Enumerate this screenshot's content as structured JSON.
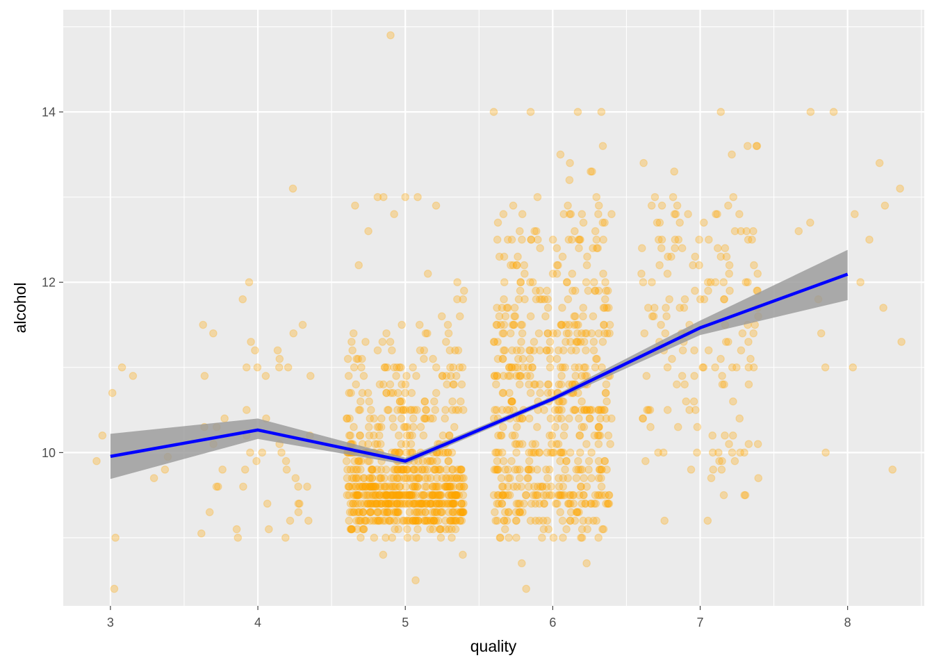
{
  "chart_data": {
    "type": "scatter",
    "title": "",
    "xlabel": "quality",
    "ylabel": "alcohol",
    "xlim": [
      2.68,
      8.52
    ],
    "ylim": [
      8.2,
      15.2
    ],
    "x_ticks": [
      3,
      4,
      5,
      6,
      7,
      8
    ],
    "x_tick_labels": [
      "3",
      "4",
      "5",
      "6",
      "7",
      "8"
    ],
    "y_ticks": [
      10,
      12,
      14
    ],
    "y_tick_labels": [
      "10",
      "12",
      "14"
    ],
    "grid": true,
    "legend": "none",
    "jitter": {
      "x_range": 0.4,
      "y_range": 0
    },
    "points": {
      "color": "#FFA500",
      "alpha": 0.3,
      "by_quality": {
        "3": {
          "n": 10,
          "alcohol": [
            8.4,
            9.0,
            9.7,
            9.9,
            9.95,
            10.2,
            10.7,
            10.9,
            11.0,
            9.8
          ]
        },
        "4": {
          "n": 53,
          "alcohol": [
            9.0,
            9.0,
            9.05,
            9.1,
            9.1,
            9.2,
            9.2,
            9.3,
            9.3,
            9.4,
            9.4,
            9.4,
            9.6,
            9.6,
            9.6,
            9.6,
            9.6,
            9.7,
            9.8,
            9.8,
            9.8,
            9.9,
            9.9,
            10.0,
            10.0,
            10.0,
            10.1,
            10.1,
            10.2,
            10.2,
            10.3,
            10.3,
            10.4,
            10.4,
            10.5,
            10.9,
            10.9,
            11.0,
            11.0,
            11.0,
            11.1,
            11.2,
            11.2,
            11.3,
            11.4,
            11.4,
            11.5,
            11.5,
            11.8,
            12.0,
            13.1,
            10.9,
            11.0
          ]
        },
        "5": {
          "n": 681
        },
        "6": {
          "n": 638
        },
        "7": {
          "n": 199
        },
        "8": {
          "n": 18,
          "alcohol": [
            9.8,
            10.0,
            11.0,
            11.0,
            11.3,
            11.4,
            11.7,
            11.8,
            12.0,
            12.6,
            12.7,
            12.8,
            12.9,
            13.1,
            13.4,
            14.0,
            14.0,
            12.5
          ]
        }
      },
      "outliers": [
        [
          4.9,
          14.9
        ],
        [
          5.6,
          14.0
        ],
        [
          5.85,
          14.0
        ],
        [
          6.17,
          14.0
        ],
        [
          6.33,
          14.0
        ],
        [
          7.14,
          14.0
        ],
        [
          6.34,
          13.6
        ],
        [
          5.0,
          13.0
        ],
        [
          5.82,
          8.4
        ],
        [
          5.07,
          8.5
        ],
        [
          5.79,
          8.7
        ],
        [
          6.23,
          8.7
        ],
        [
          4.85,
          8.8
        ],
        [
          5.39,
          8.8
        ]
      ]
    },
    "series": [
      {
        "type": "line",
        "color": "#0000FF",
        "x": [
          3,
          4,
          5,
          6,
          7,
          8
        ],
        "values": [
          9.955,
          10.265,
          9.9,
          10.63,
          11.465,
          12.095
        ],
        "ci_lower": [
          9.69,
          10.16,
          9.86,
          10.6,
          11.38,
          11.79
        ],
        "ci_upper": [
          10.22,
          10.4,
          9.94,
          10.66,
          11.55,
          12.38
        ],
        "ci_color": "#999999"
      }
    ]
  }
}
